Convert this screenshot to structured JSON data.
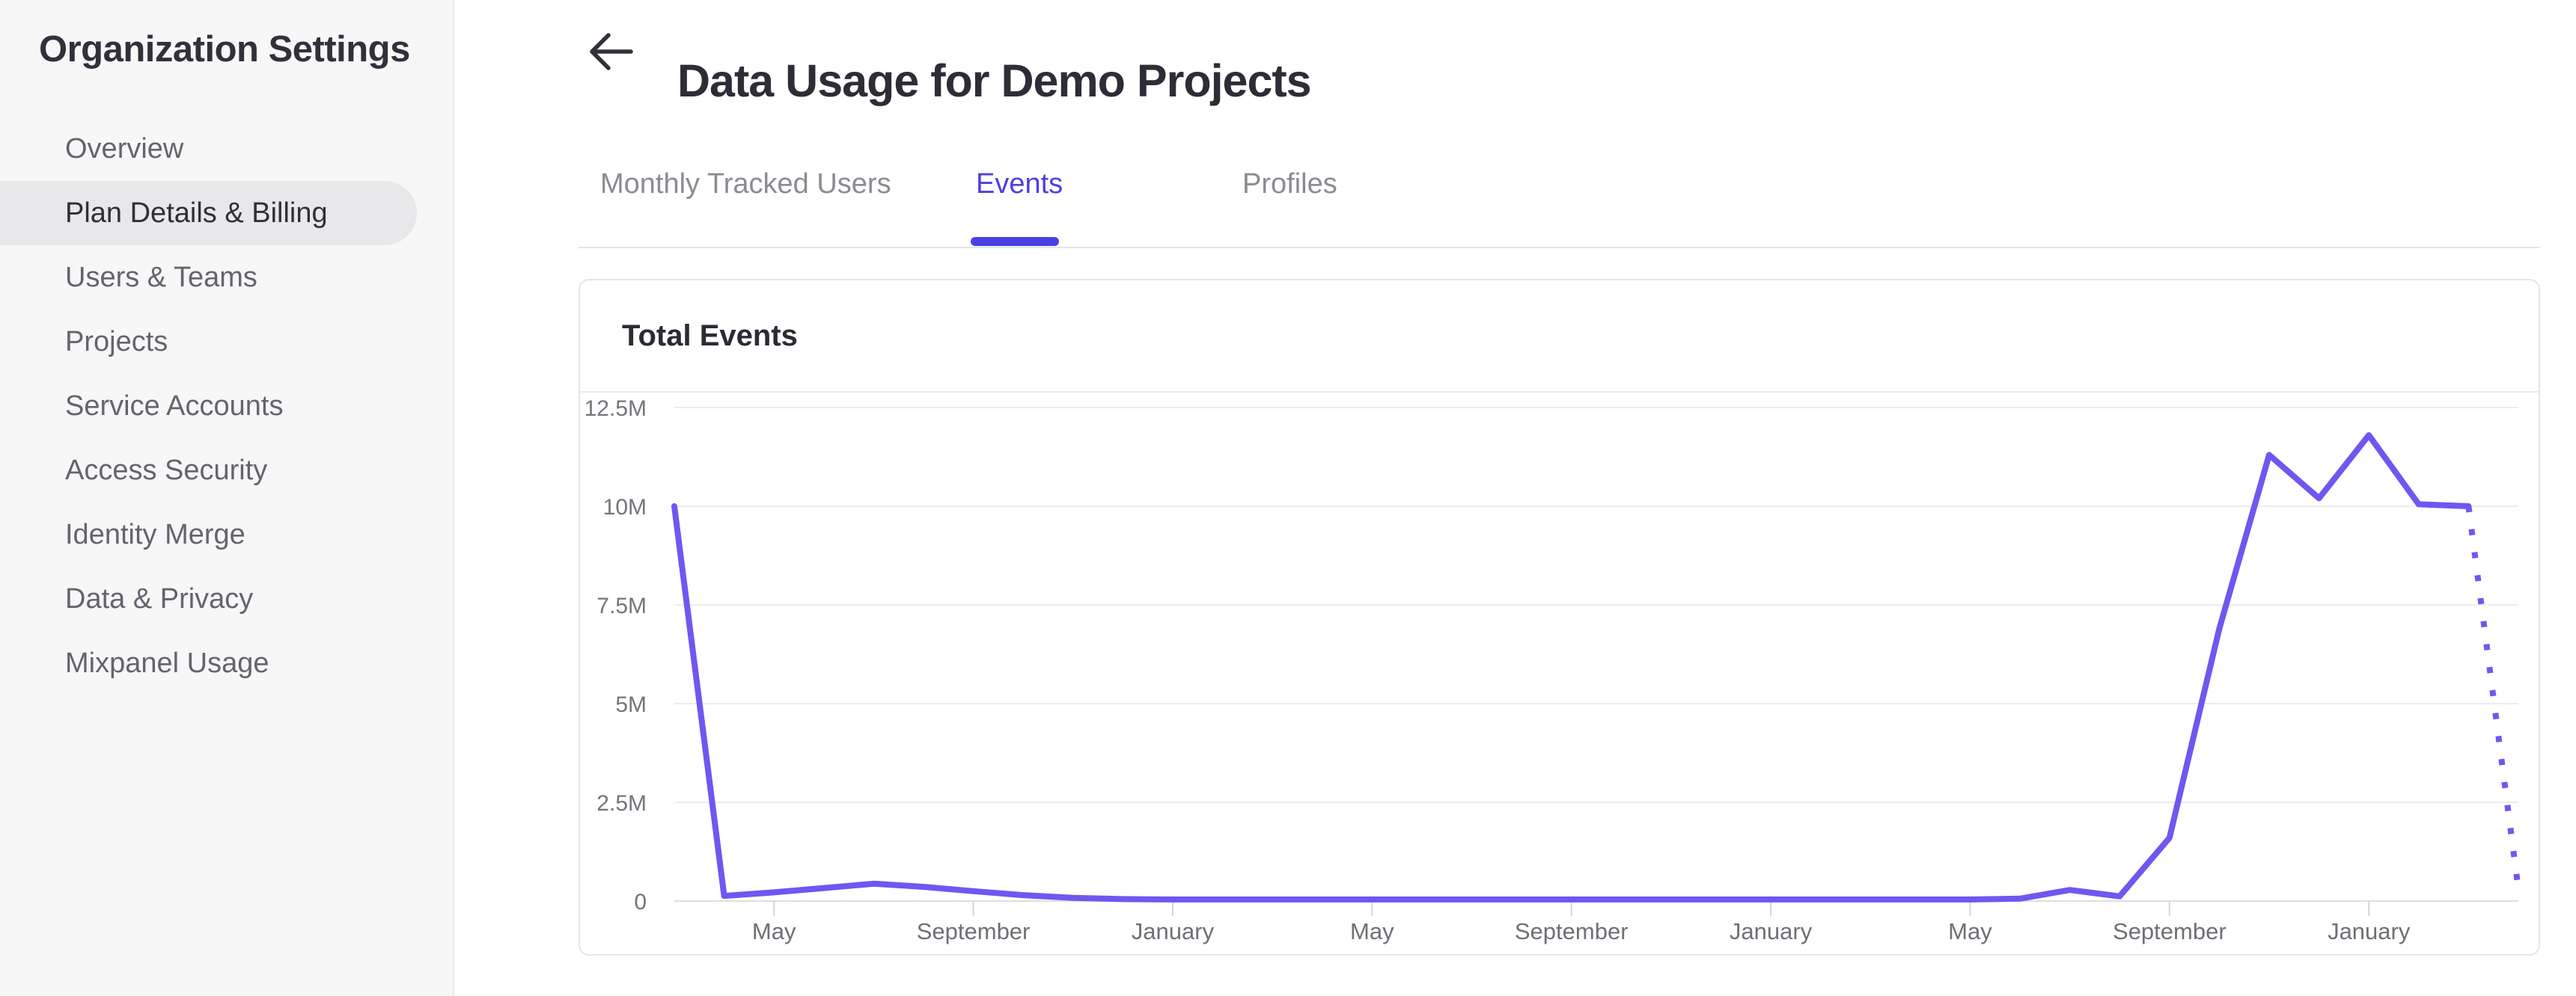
{
  "sidebar": {
    "title": "Organization Settings",
    "items": [
      {
        "label": "Overview",
        "active": false
      },
      {
        "label": "Plan Details & Billing",
        "active": true
      },
      {
        "label": "Users & Teams",
        "active": false
      },
      {
        "label": "Projects",
        "active": false
      },
      {
        "label": "Service Accounts",
        "active": false
      },
      {
        "label": "Access Security",
        "active": false
      },
      {
        "label": "Identity Merge",
        "active": false
      },
      {
        "label": "Data & Privacy",
        "active": false
      },
      {
        "label": "Mixpanel Usage",
        "active": false
      }
    ]
  },
  "header": {
    "title": "Data Usage for Demo Projects",
    "back_icon": "left-arrow"
  },
  "tabs": [
    {
      "label": "Monthly Tracked Users",
      "active": false
    },
    {
      "label": "Events",
      "active": true
    },
    {
      "label": "Profiles",
      "active": false
    }
  ],
  "card": {
    "title": "Total Events"
  },
  "colors": {
    "accent_purple": "#4b40e2",
    "chart_line_purple": "#7156f0"
  },
  "chart_data": {
    "type": "line",
    "title": "Total Events",
    "legend": false,
    "grid": true,
    "y_axis": {
      "tick_labels": [
        "12.5M",
        "10M",
        "7.5M",
        "5M",
        "2.5M",
        "0"
      ],
      "min_millions": 0,
      "max_millions": 12.5
    },
    "x_axis": {
      "tick_labels": [
        "May",
        "September",
        "January",
        "May",
        "September",
        "January",
        "May",
        "September",
        "January"
      ],
      "tick_point_indices": [
        2,
        6,
        10,
        14,
        18,
        22,
        26,
        30,
        34
      ],
      "interval": "monthly"
    },
    "series": [
      {
        "name": "Total Events",
        "color": "#7156f0",
        "values_millions": [
          10,
          0.13,
          0.22,
          0.33,
          0.44,
          0.36,
          0.25,
          0.15,
          0.08,
          0.05,
          0.04,
          0.04,
          0.04,
          0.04,
          0.04,
          0.04,
          0.04,
          0.04,
          0.04,
          0.04,
          0.04,
          0.04,
          0.04,
          0.04,
          0.04,
          0.04,
          0.04,
          0.06,
          0.28,
          0.12,
          1.6,
          6.9,
          11.3,
          10.2,
          11.8,
          10.05,
          10.0,
          0.3
        ],
        "dashed_from_index": 36
      }
    ]
  }
}
